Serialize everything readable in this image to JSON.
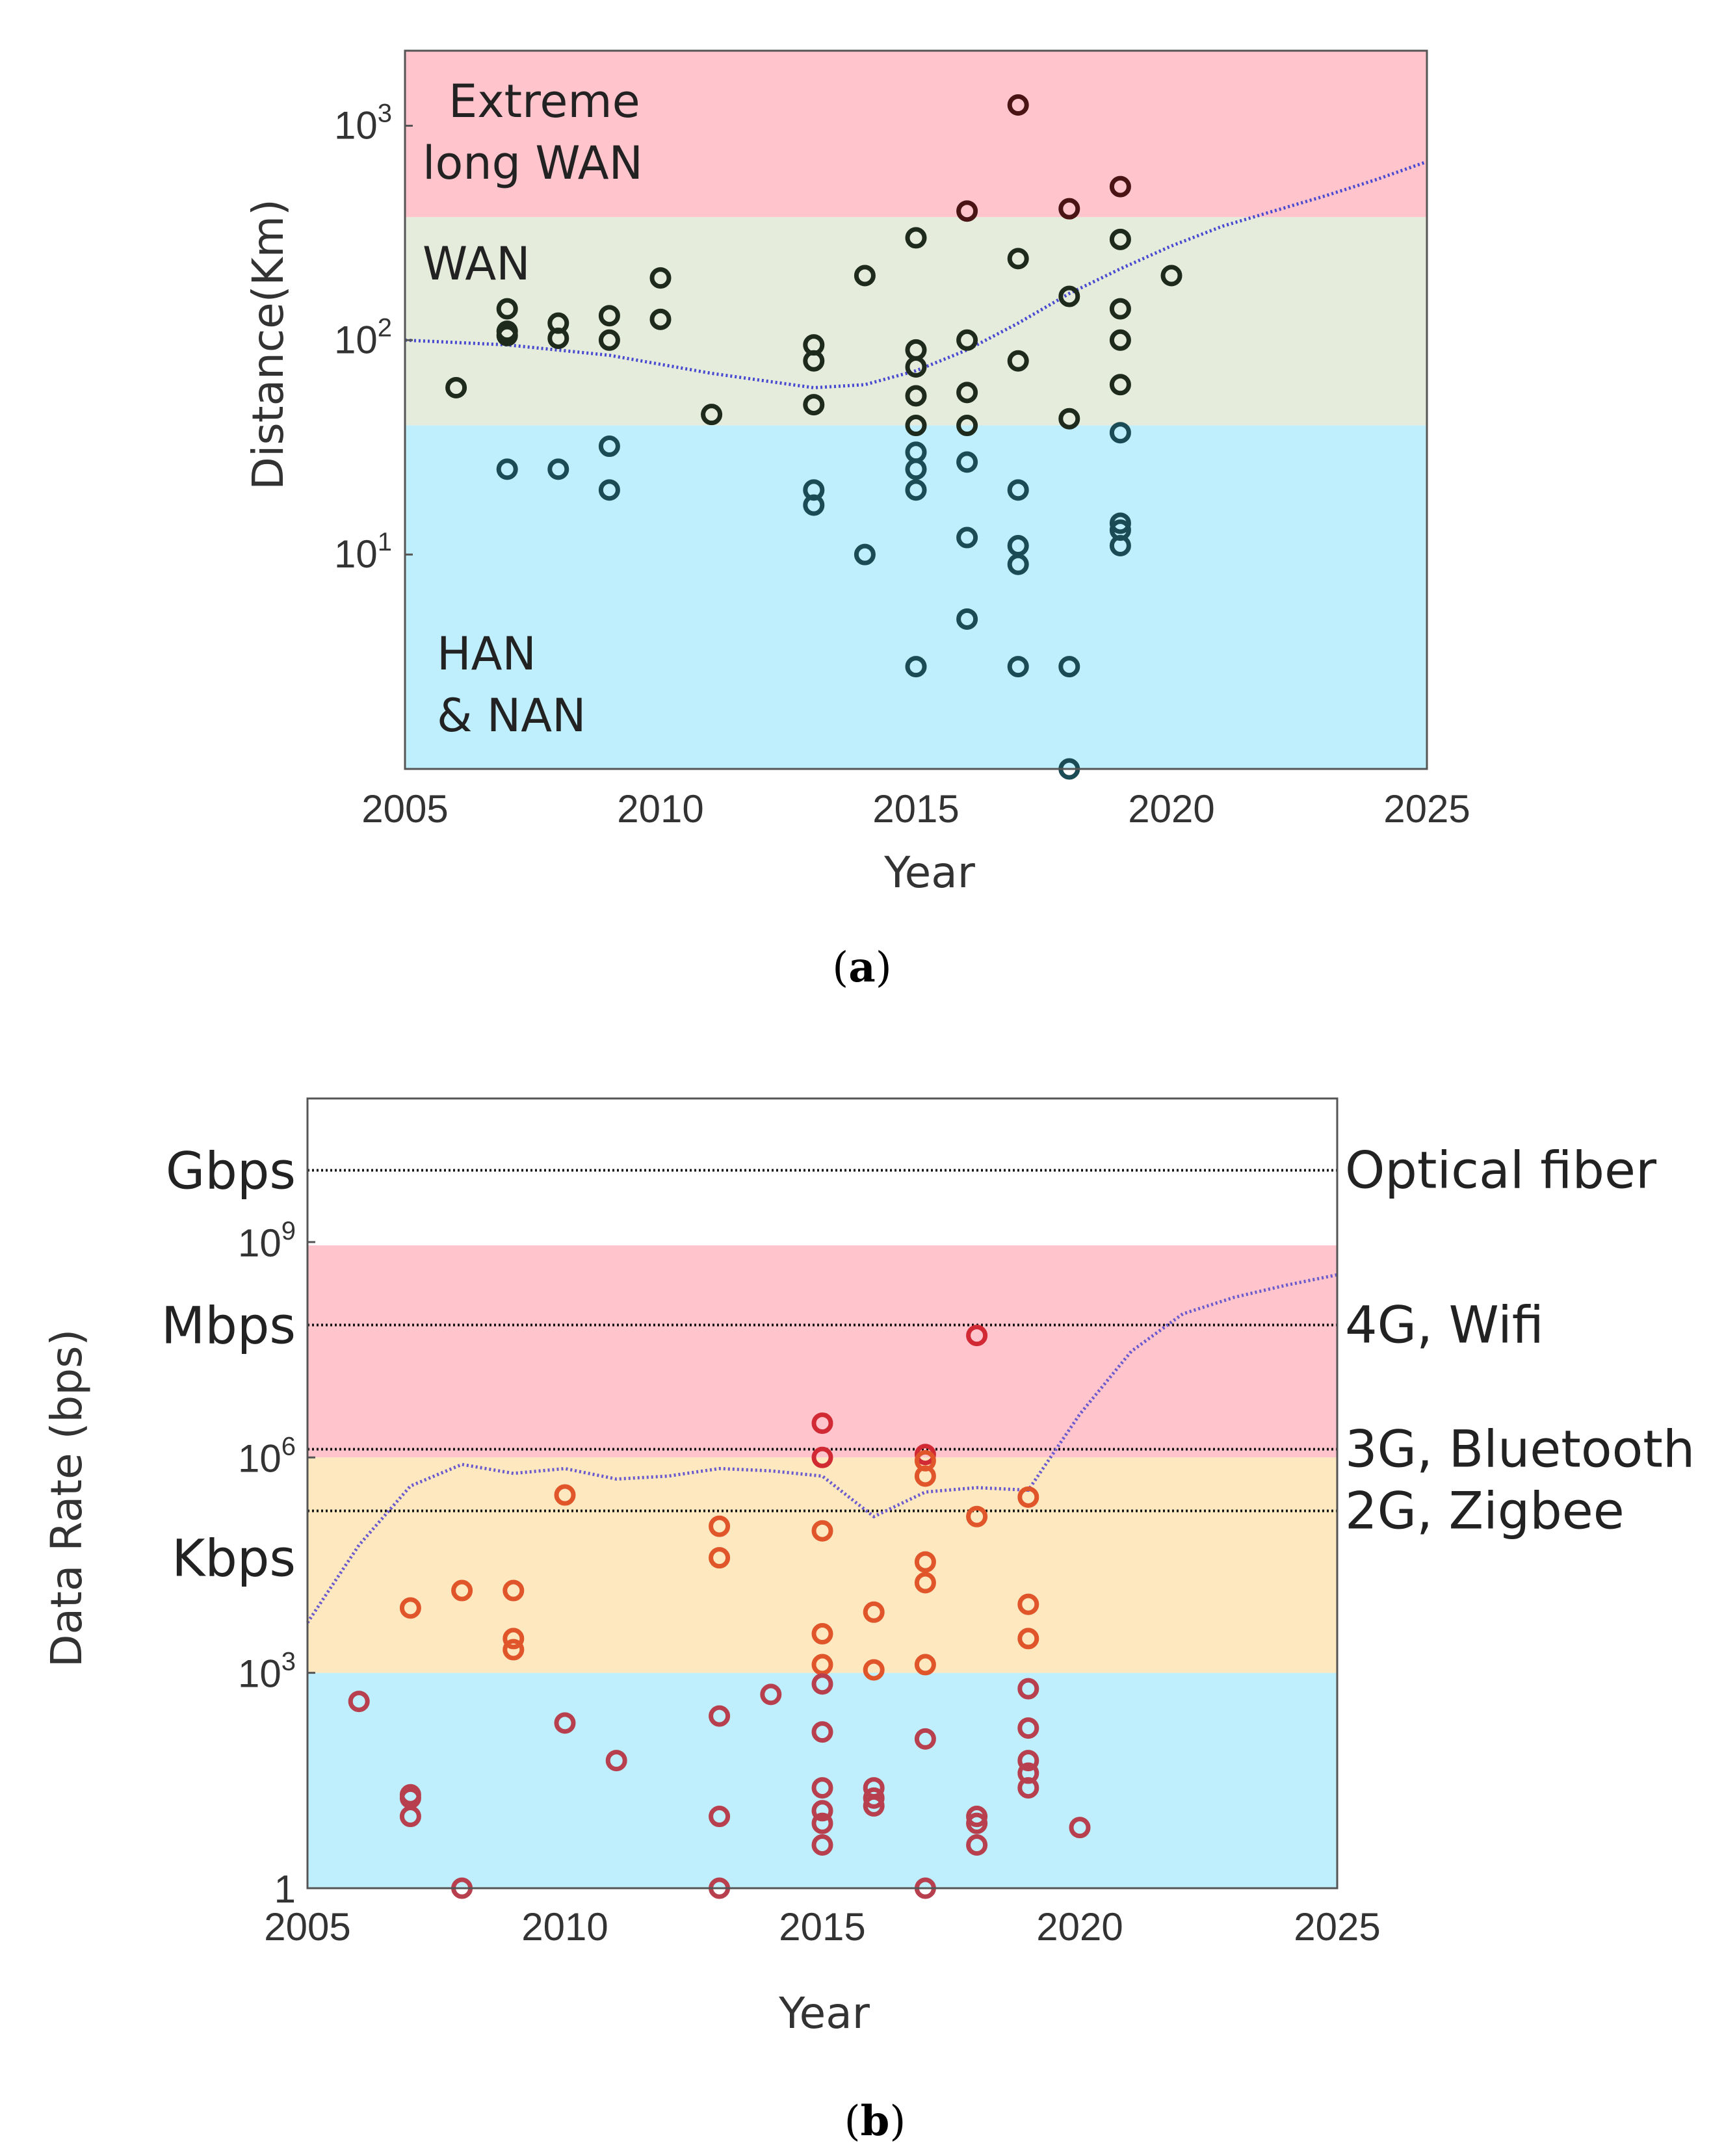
{
  "panel_a": {
    "caption_open": "(",
    "caption_letter": "a",
    "caption_close": ")",
    "colors": {
      "extreme": "#ffc4cc",
      "wan": "#e5ecdc",
      "han": "#bfeefc",
      "trend": "#4a4ad0"
    },
    "chart_data": {
      "type": "scatter",
      "xlabel": "Year",
      "ylabel": "Distance(Km)",
      "xlim": [
        2005,
        2025
      ],
      "ylim_log10": [
        0,
        3.35
      ],
      "x_ticks": [
        2005,
        2010,
        2015,
        2020,
        2025
      ],
      "x_tick_labels": [
        "2005",
        "2010",
        "2015",
        "2020",
        "2025"
      ],
      "y_ticks": [
        {
          "value": 10,
          "base": "10",
          "exp": "1"
        },
        {
          "value": 100,
          "base": "10",
          "exp": "2"
        },
        {
          "value": 1000,
          "base": "10",
          "exp": "3"
        }
      ],
      "regions": [
        {
          "name": "Extreme long WAN",
          "lines": [
            "Extreme",
            "long WAN"
          ],
          "from": 375,
          "to": 2240,
          "color": "#ffc4cc"
        },
        {
          "name": "WAN",
          "lines": [
            "WAN"
          ],
          "from": 40,
          "to": 375,
          "color": "#e5ecdc"
        },
        {
          "name": "HAN & NAN",
          "lines": [
            "HAN",
            "& NAN"
          ],
          "from": 1,
          "to": 40,
          "color": "#bfeefc"
        }
      ],
      "points": [
        [
          2006,
          60
        ],
        [
          2007,
          140
        ],
        [
          2007,
          110
        ],
        [
          2007,
          105
        ],
        [
          2007,
          25
        ],
        [
          2008,
          120
        ],
        [
          2008,
          102
        ],
        [
          2008,
          25
        ],
        [
          2009,
          130
        ],
        [
          2009,
          100
        ],
        [
          2009,
          32
        ],
        [
          2009,
          20
        ],
        [
          2010,
          195
        ],
        [
          2010,
          125
        ],
        [
          2011,
          45
        ],
        [
          2013,
          95
        ],
        [
          2013,
          80
        ],
        [
          2013,
          50
        ],
        [
          2013,
          20
        ],
        [
          2013,
          17
        ],
        [
          2014,
          200
        ],
        [
          2014,
          10
        ],
        [
          2015,
          300
        ],
        [
          2015,
          90
        ],
        [
          2015,
          75
        ],
        [
          2015,
          55
        ],
        [
          2015,
          40
        ],
        [
          2015,
          30
        ],
        [
          2015,
          25
        ],
        [
          2015,
          20
        ],
        [
          2015,
          3
        ],
        [
          2016,
          400
        ],
        [
          2016,
          100
        ],
        [
          2016,
          57
        ],
        [
          2016,
          40
        ],
        [
          2016,
          27
        ],
        [
          2016,
          12
        ],
        [
          2016,
          5
        ],
        [
          2017,
          1250
        ],
        [
          2017,
          240
        ],
        [
          2017,
          80
        ],
        [
          2017,
          20
        ],
        [
          2017,
          11
        ],
        [
          2017,
          9
        ],
        [
          2017,
          3
        ],
        [
          2018,
          410
        ],
        [
          2018,
          160
        ],
        [
          2018,
          43
        ],
        [
          2018,
          3
        ],
        [
          2018,
          1
        ],
        [
          2019,
          520
        ],
        [
          2019,
          295
        ],
        [
          2019,
          140
        ],
        [
          2019,
          100
        ],
        [
          2019,
          62
        ],
        [
          2019,
          37
        ],
        [
          2019,
          14
        ],
        [
          2019,
          13
        ],
        [
          2019,
          11
        ],
        [
          2020,
          200
        ]
      ],
      "trend": [
        [
          2005,
          100
        ],
        [
          2007,
          95
        ],
        [
          2009,
          85
        ],
        [
          2011,
          70
        ],
        [
          2013,
          60
        ],
        [
          2014,
          62
        ],
        [
          2015,
          72
        ],
        [
          2016,
          90
        ],
        [
          2017,
          120
        ],
        [
          2018,
          165
        ],
        [
          2019,
          215
        ],
        [
          2020,
          275
        ],
        [
          2021,
          340
        ],
        [
          2022,
          400
        ],
        [
          2023,
          470
        ],
        [
          2024,
          560
        ],
        [
          2025,
          680
        ]
      ]
    }
  },
  "panel_b": {
    "caption_open": "(",
    "caption_letter": "b",
    "caption_close": ")",
    "chart_data": {
      "type": "scatter",
      "xlabel": "Year",
      "ylabel": "Data Rate (bps)",
      "xlim": [
        2005,
        2025
      ],
      "ylim_log10": [
        0,
        11
      ],
      "x_ticks": [
        2005,
        2010,
        2015,
        2020,
        2025
      ],
      "x_tick_labels": [
        "2005",
        "2010",
        "2015",
        "2020",
        "2025"
      ],
      "y_ticks": [
        {
          "value": 1,
          "base": "1",
          "exp": ""
        },
        {
          "value": 1000,
          "base": "10",
          "exp": "3"
        },
        {
          "value": 1000000,
          "base": "10",
          "exp": "6"
        },
        {
          "value": 1000000000,
          "base": "10",
          "exp": "9"
        }
      ],
      "unit_labels": [
        {
          "text": "Kbps",
          "value": 40000
        },
        {
          "text": "Mbps",
          "value": 70000000
        },
        {
          "text": "Gbps",
          "value": 10000000000
        }
      ],
      "regions": [
        {
          "from": 1,
          "to": 1000,
          "color": "#bfeefc"
        },
        {
          "from": 1000,
          "to": 1000000,
          "color": "#fde8c0"
        },
        {
          "from": 1000000,
          "to": 900000000,
          "color": "#ffc4cc"
        }
      ],
      "tech_lines": [
        {
          "label": "Optical fiber",
          "value": 10000000000
        },
        {
          "label": "4G, Wifi",
          "value": 70000000
        },
        {
          "label": "3G, Bluetooth",
          "value": 1300000
        },
        {
          "label": "2G, Zigbee",
          "value": 180000
        }
      ],
      "points": [
        [
          2006,
          400
        ],
        [
          2007,
          20
        ],
        [
          2007,
          18
        ],
        [
          2007,
          8000
        ],
        [
          2007,
          10
        ],
        [
          2008,
          14000
        ],
        [
          2008,
          1
        ],
        [
          2009,
          14000
        ],
        [
          2009,
          3000
        ],
        [
          2009,
          2100
        ],
        [
          2010,
          300000
        ],
        [
          2010,
          200
        ],
        [
          2011,
          60
        ],
        [
          2013,
          110000
        ],
        [
          2013,
          40000
        ],
        [
          2013,
          250
        ],
        [
          2013,
          10
        ],
        [
          2013,
          1
        ],
        [
          2014,
          500
        ],
        [
          2015,
          3000000
        ],
        [
          2015,
          1000000
        ],
        [
          2015,
          95000
        ],
        [
          2015,
          3500
        ],
        [
          2015,
          1300
        ],
        [
          2015,
          700
        ],
        [
          2015,
          150
        ],
        [
          2015,
          25
        ],
        [
          2015,
          12
        ],
        [
          2015,
          8
        ],
        [
          2015,
          4
        ],
        [
          2016,
          7000
        ],
        [
          2016,
          1100
        ],
        [
          2016,
          25
        ],
        [
          2016,
          18
        ],
        [
          2016,
          14
        ],
        [
          2017,
          1100000
        ],
        [
          2017,
          900000
        ],
        [
          2017,
          550000
        ],
        [
          2017,
          35000
        ],
        [
          2017,
          18000
        ],
        [
          2017,
          1300
        ],
        [
          2017,
          120
        ],
        [
          2017,
          1
        ],
        [
          2018,
          50000000
        ],
        [
          2018,
          150000
        ],
        [
          2018,
          10
        ],
        [
          2018,
          8
        ],
        [
          2018,
          4
        ],
        [
          2019,
          280000
        ],
        [
          2019,
          9000
        ],
        [
          2019,
          3000
        ],
        [
          2019,
          600
        ],
        [
          2019,
          170
        ],
        [
          2019,
          60
        ],
        [
          2019,
          40
        ],
        [
          2019,
          25
        ],
        [
          2020,
          7
        ]
      ],
      "trend": [
        [
          2005,
          5000
        ],
        [
          2006,
          60000
        ],
        [
          2007,
          400000
        ],
        [
          2008,
          800000
        ],
        [
          2009,
          600000
        ],
        [
          2010,
          700000
        ],
        [
          2011,
          500000
        ],
        [
          2012,
          550000
        ],
        [
          2013,
          700000
        ],
        [
          2014,
          650000
        ],
        [
          2015,
          550000
        ],
        [
          2016,
          150000
        ],
        [
          2017,
          330000
        ],
        [
          2018,
          380000
        ],
        [
          2019,
          350000
        ],
        [
          2020,
          4000000
        ],
        [
          2021,
          30000000
        ],
        [
          2022,
          100000000
        ],
        [
          2023,
          170000000
        ],
        [
          2024,
          250000000
        ],
        [
          2025,
          350000000
        ]
      ]
    }
  }
}
